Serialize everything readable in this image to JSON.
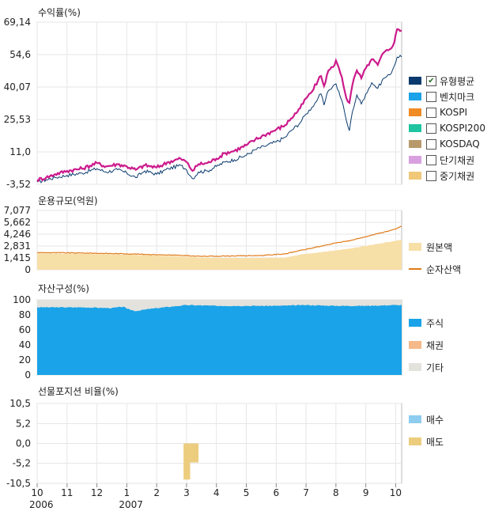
{
  "x_axis": {
    "ticks": [
      {
        "label": "10",
        "m": 0
      },
      {
        "label": "11",
        "m": 1
      },
      {
        "label": "12",
        "m": 2
      },
      {
        "label": "1",
        "m": 3
      },
      {
        "label": "2",
        "m": 4
      },
      {
        "label": "3",
        "m": 5
      },
      {
        "label": "4",
        "m": 6
      },
      {
        "label": "5",
        "m": 7
      },
      {
        "label": "6",
        "m": 8
      },
      {
        "label": "7",
        "m": 9
      },
      {
        "label": "8",
        "m": 10
      },
      {
        "label": "9",
        "m": 11
      },
      {
        "label": "10",
        "m": 12
      }
    ],
    "years": [
      {
        "label": "2006",
        "m": 0
      },
      {
        "label": "2007",
        "m": 3
      }
    ]
  },
  "return_chart": {
    "title": "수익률(%)",
    "yticks": [
      "69,14",
      "54,6",
      "40,07",
      "25,53",
      "11,0",
      "-3,52"
    ],
    "legend": [
      {
        "label": "유형평균",
        "color": "#0a3a6e",
        "checked": true
      },
      {
        "label": "벤치마크",
        "color": "#1aa3e8",
        "checked": false
      },
      {
        "label": "KOSPI",
        "color": "#f08a24",
        "checked": false
      },
      {
        "label": "KOSPI200",
        "color": "#1fc4a0",
        "checked": false
      },
      {
        "label": "KOSDAQ",
        "color": "#b89a6a",
        "checked": false
      },
      {
        "label": "단기채권",
        "color": "#d9a0e0",
        "checked": false
      },
      {
        "label": "중기채권",
        "color": "#f0c878",
        "checked": false
      }
    ]
  },
  "size_chart": {
    "title": "운용규모(억원)",
    "yticks": [
      "7,077",
      "5,662",
      "4,246",
      "2,831",
      "1,415",
      "0"
    ],
    "legend": [
      {
        "label": "원본액",
        "color": "#f7dfa8",
        "kind": "box"
      },
      {
        "label": "순자산액",
        "color": "#e07b1a",
        "kind": "line"
      }
    ]
  },
  "asset_chart": {
    "title": "자산구성(%)",
    "yticks": [
      "100",
      "80",
      "60",
      "40",
      "20",
      "0"
    ],
    "legend": [
      {
        "label": "주식",
        "color": "#1aa3e8"
      },
      {
        "label": "채권",
        "color": "#f5b98a"
      },
      {
        "label": "기타",
        "color": "#e4e2dc"
      }
    ]
  },
  "futures_chart": {
    "title": "선물포지션 비율(%)",
    "yticks": [
      "10,5",
      "5,2",
      "0,0",
      "-5,2",
      "-10,5"
    ],
    "legend": [
      {
        "label": "매수",
        "color": "#8ecdf0"
      },
      {
        "label": "매도",
        "color": "#eccd7e"
      }
    ]
  },
  "chart_data": [
    {
      "type": "line",
      "title": "수익률(%)",
      "ylim": [
        -3.52,
        69.14
      ],
      "x_unit": "months from 2006-10",
      "series": [
        {
          "name": "유형평균",
          "color": "#cc1a8c",
          "points": [
            [
              0,
              -1.5
            ],
            [
              0.3,
              -0.5
            ],
            [
              0.6,
              1.0
            ],
            [
              1.0,
              2.5
            ],
            [
              1.5,
              3.5
            ],
            [
              2.0,
              6.0
            ],
            [
              2.3,
              4.5
            ],
            [
              2.7,
              5.5
            ],
            [
              3.0,
              4.5
            ],
            [
              3.3,
              3.0
            ],
            [
              3.6,
              5.0
            ],
            [
              4.0,
              4.0
            ],
            [
              4.4,
              6.5
            ],
            [
              4.8,
              8.0
            ],
            [
              5.0,
              6.5
            ],
            [
              5.2,
              2.5
            ],
            [
              5.4,
              5.5
            ],
            [
              5.7,
              6.0
            ],
            [
              6.0,
              8.0
            ],
            [
              6.3,
              10.5
            ],
            [
              6.6,
              11.5
            ],
            [
              7.0,
              14.0
            ],
            [
              7.3,
              16.5
            ],
            [
              7.6,
              18.5
            ],
            [
              8.0,
              21.0
            ],
            [
              8.3,
              23.0
            ],
            [
              8.5,
              26.0
            ],
            [
              8.8,
              30.5
            ],
            [
              9.0,
              35.0
            ],
            [
              9.2,
              38.0
            ],
            [
              9.4,
              43.0
            ],
            [
              9.5,
              45.0
            ],
            [
              9.6,
              40.5
            ],
            [
              9.75,
              47.5
            ],
            [
              9.9,
              49.0
            ],
            [
              10.0,
              52.0
            ],
            [
              10.2,
              44.5
            ],
            [
              10.35,
              35.0
            ],
            [
              10.45,
              33.0
            ],
            [
              10.55,
              41.0
            ],
            [
              10.7,
              47.5
            ],
            [
              10.85,
              44.0
            ],
            [
              11.0,
              48.5
            ],
            [
              11.2,
              52.5
            ],
            [
              11.4,
              50.0
            ],
            [
              11.6,
              55.5
            ],
            [
              11.8,
              57.0
            ],
            [
              11.95,
              60.0
            ],
            [
              12.05,
              66.0
            ],
            [
              12.2,
              65.5
            ]
          ]
        },
        {
          "name": "벤치마크",
          "color": "#0a3a6e",
          "points": [
            [
              0,
              -2.5
            ],
            [
              0.3,
              -1.5
            ],
            [
              0.6,
              -0.5
            ],
            [
              1.0,
              0.5
            ],
            [
              1.5,
              1.5
            ],
            [
              2.0,
              3.5
            ],
            [
              2.3,
              2.0
            ],
            [
              2.7,
              3.0
            ],
            [
              3.0,
              1.5
            ],
            [
              3.3,
              -0.5
            ],
            [
              3.6,
              2.5
            ],
            [
              4.0,
              1.0
            ],
            [
              4.4,
              3.5
            ],
            [
              4.8,
              5.0
            ],
            [
              5.0,
              3.0
            ],
            [
              5.2,
              -1.0
            ],
            [
              5.4,
              2.0
            ],
            [
              5.7,
              2.5
            ],
            [
              6.0,
              4.5
            ],
            [
              6.3,
              6.5
            ],
            [
              6.6,
              7.5
            ],
            [
              7.0,
              9.5
            ],
            [
              7.3,
              12.0
            ],
            [
              7.6,
              13.5
            ],
            [
              8.0,
              15.5
            ],
            [
              8.3,
              17.5
            ],
            [
              8.5,
              20.5
            ],
            [
              8.8,
              24.0
            ],
            [
              9.0,
              28.0
            ],
            [
              9.2,
              31.0
            ],
            [
              9.4,
              35.0
            ],
            [
              9.5,
              37.0
            ],
            [
              9.6,
              32.0
            ],
            [
              9.75,
              38.5
            ],
            [
              9.9,
              40.5
            ],
            [
              10.0,
              41.5
            ],
            [
              10.2,
              34.0
            ],
            [
              10.35,
              25.0
            ],
            [
              10.45,
              20.5
            ],
            [
              10.55,
              29.0
            ],
            [
              10.7,
              36.5
            ],
            [
              10.85,
              32.5
            ],
            [
              11.0,
              37.0
            ],
            [
              11.2,
              42.0
            ],
            [
              11.4,
              39.5
            ],
            [
              11.6,
              44.0
            ],
            [
              11.8,
              45.5
            ],
            [
              11.95,
              49.5
            ],
            [
              12.05,
              53.5
            ],
            [
              12.2,
              53.5
            ]
          ]
        }
      ]
    },
    {
      "type": "area",
      "title": "운용규모(억원)",
      "ylim": [
        0,
        7077
      ],
      "x_unit": "months from 2006-10",
      "series": [
        {
          "name": "원본액",
          "kind": "area",
          "color": "#f7dfa8",
          "points": [
            [
              0,
              1950
            ],
            [
              1.5,
              1900
            ],
            [
              3.0,
              1800
            ],
            [
              4.5,
              1650
            ],
            [
              5.5,
              1450
            ],
            [
              6.5,
              1400
            ],
            [
              7.5,
              1400
            ],
            [
              8.3,
              1450
            ],
            [
              8.8,
              1800
            ],
            [
              9.5,
              2100
            ],
            [
              10.0,
              2300
            ],
            [
              10.5,
              2550
            ],
            [
              11.0,
              2850
            ],
            [
              11.5,
              3150
            ],
            [
              12.0,
              3450
            ],
            [
              12.2,
              3600
            ]
          ]
        },
        {
          "name": "순자산액",
          "kind": "line",
          "color": "#e07b1a",
          "points": [
            [
              0,
              2050
            ],
            [
              1.5,
              2000
            ],
            [
              3.0,
              1900
            ],
            [
              4.5,
              1750
            ],
            [
              5.5,
              1600
            ],
            [
              6.5,
              1650
            ],
            [
              7.5,
              1700
            ],
            [
              8.3,
              1900
            ],
            [
              8.8,
              2300
            ],
            [
              9.5,
              2800
            ],
            [
              10.0,
              3200
            ],
            [
              10.5,
              3500
            ],
            [
              11.0,
              3950
            ],
            [
              11.5,
              4400
            ],
            [
              12.0,
              4850
            ],
            [
              12.2,
              5200
            ]
          ]
        }
      ]
    },
    {
      "type": "area",
      "title": "자산구성(%)",
      "ylim": [
        0,
        100
      ],
      "x_unit": "months from 2006-10",
      "series": [
        {
          "name": "주식",
          "color": "#1aa3e8",
          "points": [
            [
              0,
              90
            ],
            [
              1.5,
              90
            ],
            [
              2.5,
              89
            ],
            [
              2.9,
              91
            ],
            [
              3.0,
              88
            ],
            [
              3.3,
              85
            ],
            [
              3.6,
              87
            ],
            [
              4.0,
              89
            ],
            [
              4.5,
              91
            ],
            [
              5.0,
              93
            ],
            [
              6.0,
              92
            ],
            [
              7.0,
              92
            ],
            [
              8.0,
              92
            ],
            [
              9.0,
              93
            ],
            [
              10.0,
              92
            ],
            [
              11.0,
              92
            ],
            [
              12.0,
              93
            ],
            [
              12.2,
              93
            ]
          ]
        },
        {
          "name": "채권",
          "color": "#f5b98a",
          "points": [
            [
              0,
              0
            ],
            [
              12.2,
              0
            ]
          ]
        },
        {
          "name": "기타",
          "color": "#e4e2dc",
          "points": [
            [
              0,
              10
            ],
            [
              1.5,
              10
            ],
            [
              2.5,
              11
            ],
            [
              2.9,
              9
            ],
            [
              3.0,
              12
            ],
            [
              3.3,
              15
            ],
            [
              3.6,
              13
            ],
            [
              4.0,
              11
            ],
            [
              4.5,
              9
            ],
            [
              5.0,
              7
            ],
            [
              6.0,
              8
            ],
            [
              7.0,
              8
            ],
            [
              8.0,
              8
            ],
            [
              9.0,
              7
            ],
            [
              10.0,
              8
            ],
            [
              11.0,
              8
            ],
            [
              12.0,
              7
            ],
            [
              12.2,
              7
            ]
          ]
        }
      ]
    },
    {
      "type": "bar",
      "title": "선물포지션 비율(%)",
      "ylim": [
        -10.5,
        10.5
      ],
      "x_unit": "months from 2006-10",
      "series": [
        {
          "name": "매수",
          "color": "#8ecdf0",
          "bars": []
        },
        {
          "name": "매도",
          "color": "#eccd7e",
          "bars": [
            {
              "x0": 4.9,
              "x1": 5.12,
              "value": -9.5
            },
            {
              "x0": 5.12,
              "x1": 5.4,
              "value": -5.0
            }
          ]
        }
      ]
    }
  ]
}
